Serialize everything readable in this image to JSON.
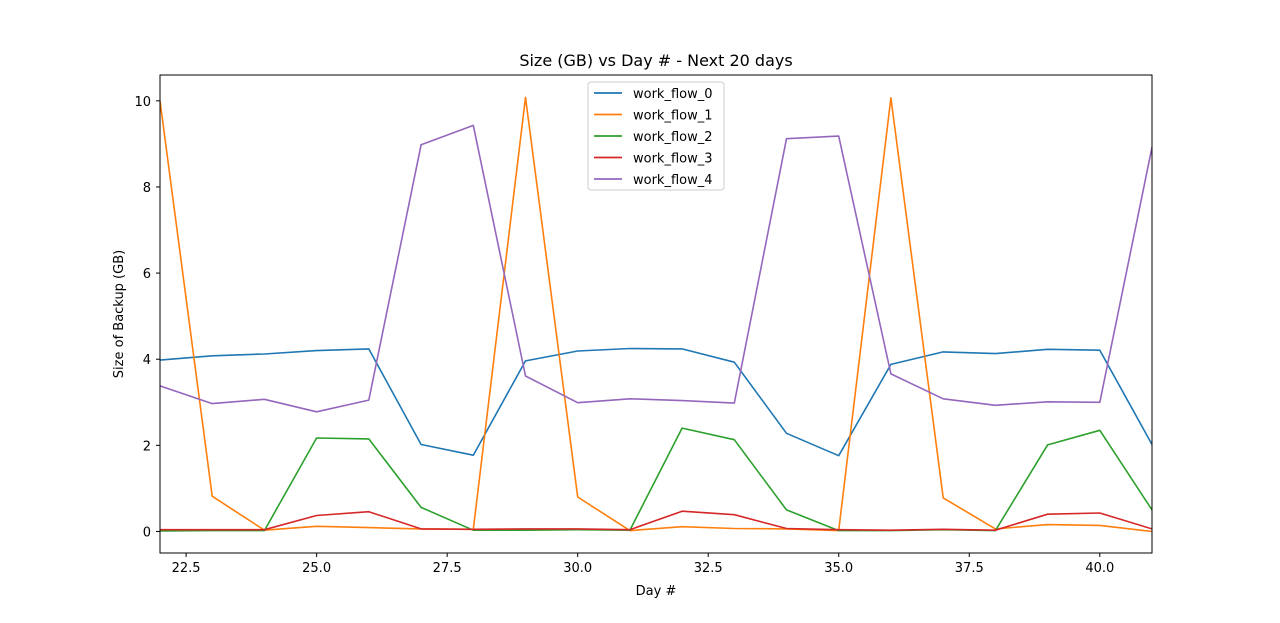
{
  "chart_data": {
    "type": "line",
    "title": "Size (GB) vs Day # - Next 20 days",
    "xlabel": "Day #",
    "ylabel": "Size of Backup (GB)",
    "xlim": [
      22,
      41
    ],
    "ylim": [
      -0.5,
      10.6
    ],
    "xticks": [
      "22.5",
      "25.0",
      "27.5",
      "30.0",
      "32.5",
      "35.0",
      "37.5",
      "40.0"
    ],
    "xtick_values": [
      22.5,
      25,
      27.5,
      30,
      32.5,
      35,
      37.5,
      40
    ],
    "yticks": [
      "0",
      "2",
      "4",
      "6",
      "8",
      "10"
    ],
    "ytick_values": [
      0,
      2,
      4,
      6,
      8,
      10
    ],
    "grid": false,
    "legend_position": "top-center",
    "x": [
      22,
      23,
      24,
      25,
      26,
      27,
      28,
      29,
      30,
      31,
      32,
      33,
      34,
      35,
      36,
      37,
      38,
      39,
      40,
      41
    ],
    "series": [
      {
        "name": "work_flow_0",
        "color": "#1f77b4",
        "values": [
          3.98,
          4.08,
          4.12,
          4.2,
          4.24,
          2.02,
          1.77,
          3.96,
          4.19,
          4.25,
          4.24,
          3.93,
          2.28,
          1.76,
          3.88,
          4.17,
          4.13,
          4.23,
          4.21,
          2.02
        ]
      },
      {
        "name": "work_flow_1",
        "color": "#ff7f0e",
        "values": [
          10.0,
          0.82,
          0.03,
          0.12,
          0.09,
          0.06,
          0.05,
          10.08,
          0.8,
          0.02,
          0.11,
          0.07,
          0.06,
          0.02,
          10.07,
          0.78,
          0.06,
          0.16,
          0.14,
          0.0
        ]
      },
      {
        "name": "work_flow_2",
        "color": "#2ca02c",
        "values": [
          0.01,
          0.02,
          0.02,
          2.17,
          2.15,
          0.56,
          0.03,
          0.03,
          0.04,
          0.03,
          2.4,
          2.13,
          0.5,
          0.02,
          0.02,
          0.04,
          0.02,
          2.01,
          2.35,
          0.5
        ]
      },
      {
        "name": "work_flow_3",
        "color": "#d62728",
        "values": [
          0.04,
          0.04,
          0.04,
          0.37,
          0.46,
          0.06,
          0.05,
          0.06,
          0.06,
          0.04,
          0.47,
          0.39,
          0.07,
          0.04,
          0.03,
          0.05,
          0.03,
          0.4,
          0.43,
          0.06
        ]
      },
      {
        "name": "work_flow_4",
        "color": "#9467bd",
        "values": [
          3.38,
          2.97,
          3.07,
          2.78,
          3.05,
          8.98,
          9.43,
          3.61,
          2.99,
          3.08,
          3.04,
          2.98,
          9.12,
          9.18,
          3.66,
          3.08,
          2.93,
          3.01,
          3.0,
          8.92
        ]
      }
    ]
  }
}
